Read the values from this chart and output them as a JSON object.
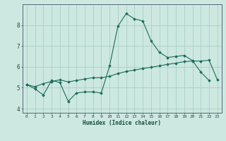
{
  "title": "",
  "xlabel": "Humidex (Indice chaleur)",
  "ylabel": "",
  "bg_color": "#cce8e0",
  "grid_color": "#aacfc8",
  "line_color": "#1a6b5a",
  "x_values": [
    0,
    1,
    2,
    3,
    4,
    5,
    6,
    7,
    8,
    9,
    10,
    11,
    12,
    13,
    14,
    15,
    16,
    17,
    18,
    19,
    20,
    21,
    22,
    23
  ],
  "line1_y": [
    5.15,
    4.95,
    4.65,
    5.35,
    5.25,
    4.35,
    4.75,
    4.8,
    4.8,
    4.75,
    6.05,
    7.95,
    8.55,
    8.3,
    8.2,
    7.25,
    6.7,
    6.45,
    6.5,
    6.55,
    6.3,
    5.75,
    5.35,
    null
  ],
  "line2_y": [
    5.15,
    5.05,
    5.2,
    5.3,
    5.38,
    5.28,
    5.35,
    5.42,
    5.48,
    5.48,
    5.55,
    5.68,
    5.78,
    5.85,
    5.92,
    5.98,
    6.05,
    6.12,
    6.18,
    6.25,
    6.28,
    6.28,
    6.32,
    5.38
  ],
  "ylim": [
    3.8,
    9.0
  ],
  "xlim": [
    -0.5,
    23.5
  ],
  "yticks": [
    4,
    5,
    6,
    7,
    8
  ],
  "xticks": [
    0,
    1,
    2,
    3,
    4,
    5,
    6,
    7,
    8,
    9,
    10,
    11,
    12,
    13,
    14,
    15,
    16,
    17,
    18,
    19,
    20,
    21,
    22,
    23
  ],
  "xtick_labels": [
    "0",
    "1",
    "2",
    "3",
    "4",
    "5",
    "6",
    "7",
    "8",
    "9",
    "10",
    "11",
    "12",
    "13",
    "14",
    "15",
    "16",
    "17",
    "18",
    "19",
    "20",
    "21",
    "22",
    "23"
  ],
  "figsize": [
    3.2,
    2.0
  ],
  "dpi": 100
}
